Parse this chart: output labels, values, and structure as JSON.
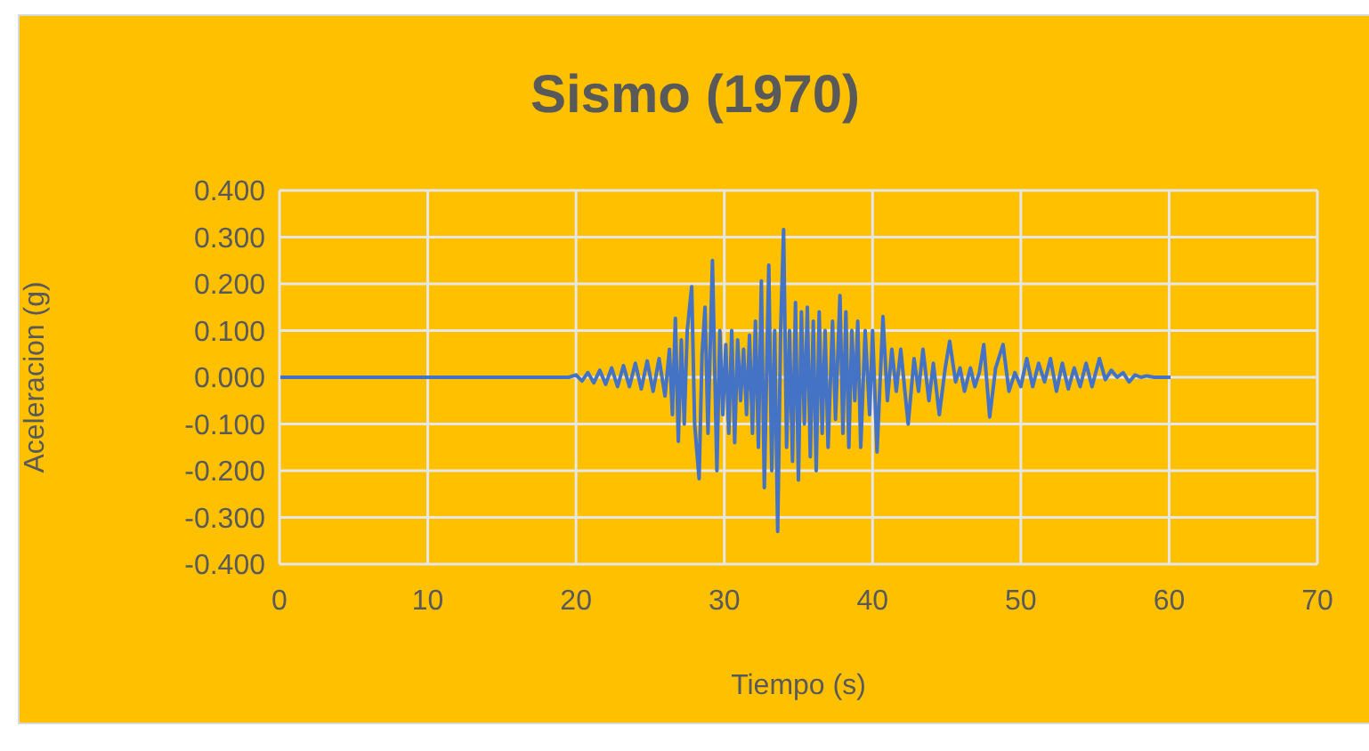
{
  "chart_data": {
    "type": "line",
    "title": "Sismo (1970)",
    "xlabel": "Tiempo (s)",
    "ylabel": "Aceleracion (g)",
    "x": [
      0,
      19.5,
      20.0,
      20.4,
      20.8,
      21.2,
      21.6,
      22.0,
      22.4,
      22.8,
      23.2,
      23.6,
      24.0,
      24.4,
      24.8,
      25.2,
      25.6,
      26.0,
      26.3,
      26.5,
      26.7,
      26.9,
      27.1,
      27.3,
      27.5,
      27.8,
      28.0,
      28.3,
      28.5,
      28.7,
      28.9,
      29.2,
      29.5,
      29.7,
      29.9,
      30.1,
      30.3,
      30.5,
      30.7,
      30.9,
      31.1,
      31.3,
      31.5,
      31.7,
      31.9,
      32.1,
      32.3,
      32.5,
      32.7,
      33.0,
      33.2,
      33.4,
      33.6,
      33.8,
      34.0,
      34.2,
      34.4,
      34.6,
      34.8,
      35.0,
      35.2,
      35.4,
      35.6,
      35.8,
      36.0,
      36.2,
      36.4,
      36.6,
      36.8,
      37.0,
      37.3,
      37.5,
      37.8,
      38.0,
      38.2,
      38.4,
      38.6,
      38.8,
      39.0,
      39.2,
      39.5,
      39.8,
      40.0,
      40.3,
      40.7,
      41.0,
      41.3,
      41.6,
      41.9,
      42.4,
      42.8,
      43.1,
      43.4,
      43.8,
      44.1,
      44.5,
      44.9,
      45.2,
      45.6,
      45.9,
      46.2,
      46.6,
      46.9,
      47.2,
      47.5,
      47.9,
      48.3,
      48.8,
      49.2,
      49.6,
      50.0,
      50.4,
      50.8,
      51.2,
      51.6,
      52.0,
      52.4,
      52.8,
      53.2,
      53.6,
      54.0,
      54.4,
      54.8,
      55.3,
      55.7,
      56.1,
      56.5,
      56.9,
      57.3,
      57.7,
      58.1,
      58.5,
      59.0,
      60.1
    ],
    "series": [
      {
        "color": "#4472c4",
        "values": [
          0,
          0,
          0.005,
          -0.008,
          0.01,
          -0.012,
          0.015,
          -0.015,
          0.02,
          -0.02,
          0.025,
          -0.02,
          0.03,
          -0.025,
          0.035,
          -0.03,
          0.04,
          -0.04,
          0.06,
          -0.08,
          0.126,
          -0.137,
          0.08,
          -0.1,
          0.1,
          0.194,
          -0.1,
          -0.217,
          0.05,
          0.15,
          -0.12,
          0.25,
          -0.2,
          0.1,
          -0.08,
          0.07,
          -0.12,
          0.1,
          -0.14,
          0.08,
          -0.05,
          0.06,
          -0.08,
          0.09,
          -0.12,
          0.12,
          -0.15,
          0.206,
          -0.236,
          0.24,
          -0.2,
          0.1,
          -0.33,
          0.1,
          0.316,
          -0.15,
          0.1,
          -0.18,
          0.16,
          -0.22,
          0.14,
          -0.1,
          0.15,
          -0.17,
          0.12,
          -0.2,
          0.14,
          -0.12,
          0.1,
          -0.15,
          0.12,
          -0.09,
          0.175,
          -0.12,
          0.14,
          -0.15,
          0.1,
          -0.05,
          0.12,
          -0.15,
          0.1,
          -0.08,
          0.1,
          -0.16,
          0.13,
          -0.05,
          0.06,
          -0.03,
          0.06,
          -0.1,
          0.04,
          -0.03,
          0.06,
          -0.05,
          0.03,
          -0.08,
          0.02,
          0.077,
          -0.01,
          0.02,
          -0.03,
          0.02,
          -0.02,
          0.01,
          0.07,
          -0.085,
          0.02,
          0.07,
          -0.03,
          0.01,
          -0.02,
          0.04,
          -0.02,
          0.03,
          -0.01,
          0.04,
          -0.03,
          0.03,
          -0.025,
          0.02,
          -0.02,
          0.03,
          -0.02,
          0.04,
          -0.005,
          0.015,
          0,
          0.01,
          -0.01,
          0.005,
          0,
          0.003,
          0,
          0
        ]
      }
    ],
    "xlim": [
      0,
      70
    ],
    "xticks": [
      0,
      10,
      20,
      30,
      40,
      50,
      60,
      70
    ],
    "ylim": [
      -0.4,
      0.4
    ],
    "yticks": [
      {
        "value": -0.4,
        "label": "-0.400"
      },
      {
        "value": -0.3,
        "label": "-0.300"
      },
      {
        "value": -0.2,
        "label": "-0.200"
      },
      {
        "value": -0.1,
        "label": "-0.100"
      },
      {
        "value": 0,
        "label": "0.000"
      },
      {
        "value": 0.1,
        "label": "0.100"
      },
      {
        "value": 0.2,
        "label": "0.200"
      },
      {
        "value": 0.3,
        "label": "0.300"
      },
      {
        "value": 0.4,
        "label": "0.400"
      }
    ],
    "grid": true,
    "legend": false
  }
}
